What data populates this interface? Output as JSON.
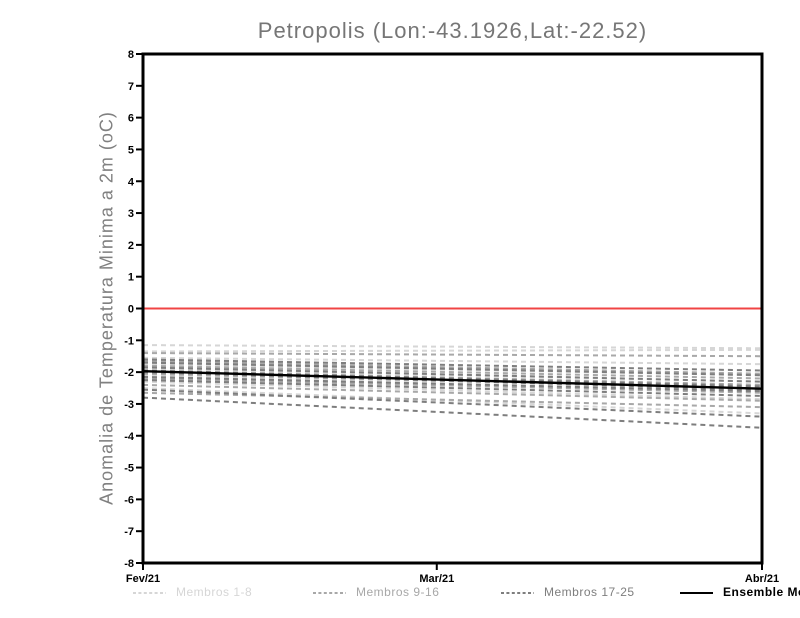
{
  "chart_data": {
    "type": "line",
    "title": "Petropolis (Lon:-43.1926,Lat:-22.52)",
    "xlabel": "",
    "ylabel": "Anomalia de Temperatura Minima a 2m (oC)",
    "ylim": [
      -8,
      8
    ],
    "y_tick_step": 1,
    "grid": "off",
    "legend_position": "bottom",
    "x_ticks": [
      {
        "label": "Fev/21",
        "t": 0
      },
      {
        "label": "Mar/21",
        "t": 0.4746
      },
      {
        "label": "Abr/21",
        "t": 1
      }
    ],
    "zero_line": {
      "value": 0,
      "color": "#f04444"
    },
    "axis_color": "#000000",
    "groups": [
      {
        "name": "Membros 1-8",
        "color": "#d6d6d6",
        "members": [
          [
            -1.15,
            -1.25
          ],
          [
            -1.35,
            -1.3
          ],
          [
            -1.55,
            -1.75
          ],
          [
            -1.75,
            -2.1
          ],
          [
            -1.9,
            -2.3
          ],
          [
            -2.1,
            -2.5
          ],
          [
            -2.3,
            -2.85
          ],
          [
            -2.5,
            -3.3
          ]
        ]
      },
      {
        "name": "Membros 9-16",
        "color": "#a8a8a8",
        "members": [
          [
            -1.4,
            -1.5
          ],
          [
            -1.65,
            -2.05
          ],
          [
            -1.8,
            -2.2
          ],
          [
            -1.95,
            -2.4
          ],
          [
            -2.05,
            -2.5
          ],
          [
            -2.2,
            -2.65
          ],
          [
            -2.4,
            -2.9
          ],
          [
            -2.65,
            -3.1
          ]
        ]
      },
      {
        "name": "Membros 17-25",
        "color": "#7e7e7e",
        "members": [
          [
            -1.6,
            -1.95
          ],
          [
            -1.7,
            -2.1
          ],
          [
            -1.85,
            -2.3
          ],
          [
            -1.95,
            -2.45
          ],
          [
            -2.0,
            -2.55
          ],
          [
            -2.15,
            -2.6
          ],
          [
            -2.25,
            -2.75
          ],
          [
            -2.55,
            -3.4
          ],
          [
            -2.8,
            -3.75
          ]
        ]
      }
    ],
    "ensemble_mean": {
      "name": "Ensemble Mean",
      "color": "#000000",
      "values": [
        -1.97,
        -2.52
      ]
    }
  }
}
